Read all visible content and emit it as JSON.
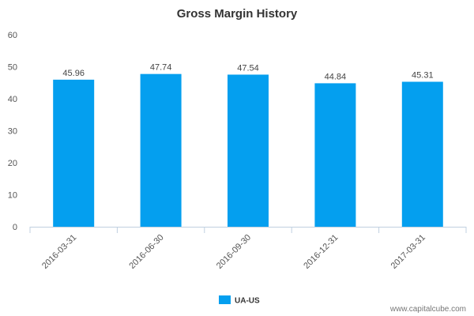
{
  "chart_data": {
    "type": "bar",
    "title": "Gross Margin History",
    "categories": [
      "2016-03-31",
      "2016-06-30",
      "2016-09-30",
      "2016-12-31",
      "2017-03-31"
    ],
    "series": [
      {
        "name": "UA-US",
        "values": [
          45.96,
          47.74,
          47.54,
          44.84,
          45.31
        ],
        "color": "#049FEF"
      }
    ],
    "ylim": [
      0,
      60
    ],
    "yticks": [
      "0",
      "10",
      "20",
      "30",
      "40",
      "50",
      "60"
    ],
    "data_labels": [
      "45.96",
      "47.74",
      "47.54",
      "44.84",
      "45.31"
    ],
    "grid": false,
    "legend_position": "bottom-center"
  },
  "watermark": "www.capitalcube.com"
}
